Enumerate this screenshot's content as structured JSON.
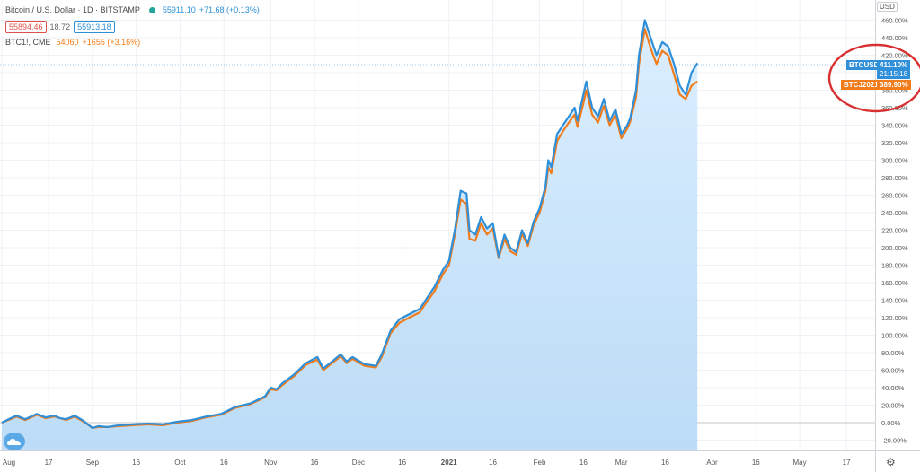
{
  "legend": {
    "symbol_title": "Bitcoin / U.S. Dollar · 1D · BITSTAMP",
    "bid": "55894.46",
    "spread": "18.72",
    "ask": "55913.18",
    "last": "55911.10",
    "change": "+71.68 (+0.13%)",
    "compare_symbol": "BTC1!, CME",
    "compare_last": "54060",
    "compare_change": "+1655 (+3.16%)"
  },
  "axis": {
    "currency": "USD",
    "y_ticks": [
      "460.00%",
      "440.00%",
      "420.00%",
      "400.00%",
      "380.00%",
      "360.00%",
      "340.00%",
      "320.00%",
      "300.00%",
      "280.00%",
      "260.00%",
      "240.00%",
      "220.00%",
      "200.00%",
      "180.00%",
      "160.00%",
      "140.00%",
      "120.00%",
      "100.00%",
      "80.00%",
      "60.00%",
      "40.00%",
      "20.00%",
      "0.00%",
      "-20.00%"
    ],
    "y_values": [
      460,
      440,
      420,
      400,
      380,
      360,
      340,
      320,
      300,
      280,
      260,
      240,
      220,
      200,
      180,
      160,
      140,
      120,
      100,
      80,
      60,
      40,
      20,
      0,
      -20
    ],
    "x_ticks": [
      "Aug",
      "17",
      "Sep",
      "16",
      "Oct",
      "16",
      "Nov",
      "16",
      "Dec",
      "16",
      "2021",
      "16",
      "Feb",
      "16",
      "Mar",
      "16",
      "Apr",
      "16",
      "May",
      "17"
    ],
    "x_days": [
      0,
      16,
      31,
      46,
      61,
      76,
      92,
      107,
      122,
      137,
      153,
      168,
      184,
      199,
      212,
      227,
      243,
      258,
      273,
      289
    ]
  },
  "tags": {
    "btcusd_name": "BTCUSD",
    "btcusd_value": "411.10%",
    "btcusd_countdown": "21:15:18",
    "btc_future_name": "BTCJ2021",
    "btc_future_value": "389.90%"
  },
  "colors": {
    "btcusd": "#2f8fd8",
    "btc_future": "#f07c1c",
    "area_top": "#cce4fb",
    "area_bottom": "#ffffff",
    "highlight_ellipse": "#d83030",
    "grid": "#eef1f5"
  },
  "chart_data": {
    "type": "line",
    "scale": "percent change",
    "ylim": [
      -25,
      470
    ],
    "series": [
      {
        "name": "BTCUSD",
        "x": [
          0,
          3,
          5,
          8,
          12,
          15,
          18,
          20,
          22,
          25,
          28,
          31,
          33,
          36,
          40,
          45,
          50,
          55,
          60,
          65,
          70,
          75,
          80,
          85,
          90,
          92,
          94,
          96,
          100,
          104,
          108,
          110,
          113,
          116,
          118,
          120,
          124,
          128,
          130,
          133,
          136,
          140,
          143,
          145,
          148,
          151,
          153,
          155,
          157,
          159,
          160,
          162,
          164,
          166,
          168,
          170,
          172,
          174,
          176,
          178,
          180,
          182,
          184,
          186,
          187,
          188,
          190,
          192,
          194,
          196,
          197,
          199,
          200,
          202,
          204,
          206,
          208,
          210,
          212,
          214,
          215,
          217,
          218,
          220,
          222,
          224,
          226,
          228,
          230,
          232,
          234,
          236,
          238
        ],
        "y": [
          0,
          5,
          8,
          4,
          10,
          6,
          8,
          5,
          4,
          8,
          2,
          -6,
          -4,
          -5,
          -3,
          -2,
          -1,
          -2,
          1,
          3,
          7,
          10,
          18,
          22,
          30,
          40,
          38,
          45,
          55,
          68,
          75,
          62,
          70,
          78,
          70,
          75,
          67,
          65,
          78,
          105,
          118,
          125,
          130,
          140,
          155,
          175,
          185,
          220,
          265,
          262,
          220,
          215,
          235,
          222,
          228,
          190,
          215,
          200,
          195,
          220,
          205,
          230,
          245,
          270,
          300,
          292,
          330,
          340,
          350,
          360,
          345,
          375,
          390,
          360,
          350,
          370,
          345,
          358,
          330,
          340,
          348,
          380,
          420,
          460,
          440,
          420,
          435,
          430,
          410,
          385,
          375,
          400,
          411
        ]
      },
      {
        "name": "BTCJ2021",
        "x": [
          0,
          3,
          5,
          8,
          12,
          15,
          18,
          20,
          22,
          25,
          28,
          31,
          33,
          36,
          40,
          45,
          50,
          55,
          60,
          65,
          70,
          75,
          80,
          85,
          90,
          92,
          94,
          96,
          100,
          104,
          108,
          110,
          113,
          116,
          118,
          120,
          124,
          128,
          130,
          133,
          136,
          140,
          143,
          145,
          148,
          151,
          153,
          155,
          157,
          159,
          160,
          162,
          164,
          166,
          168,
          170,
          172,
          174,
          176,
          178,
          180,
          182,
          184,
          186,
          187,
          188,
          190,
          192,
          194,
          196,
          197,
          199,
          200,
          202,
          204,
          206,
          208,
          210,
          212,
          214,
          215,
          217,
          218,
          220,
          222,
          224,
          226,
          228,
          230,
          232,
          234,
          236,
          238
        ],
        "y": [
          0,
          4,
          7,
          3,
          9,
          5,
          7,
          5,
          3,
          7,
          1,
          -6,
          -5,
          -5,
          -4,
          -3,
          -2,
          -3,
          0,
          2,
          6,
          9,
          17,
          21,
          29,
          38,
          37,
          43,
          53,
          66,
          72,
          60,
          68,
          76,
          68,
          73,
          65,
          63,
          75,
          102,
          114,
          121,
          126,
          136,
          150,
          170,
          180,
          215,
          255,
          250,
          210,
          208,
          228,
          215,
          222,
          188,
          210,
          196,
          192,
          216,
          202,
          226,
          240,
          265,
          292,
          285,
          322,
          333,
          343,
          352,
          338,
          365,
          380,
          352,
          343,
          362,
          340,
          352,
          325,
          336,
          344,
          372,
          410,
          450,
          428,
          410,
          425,
          420,
          398,
          375,
          370,
          385,
          390
        ]
      }
    ]
  }
}
